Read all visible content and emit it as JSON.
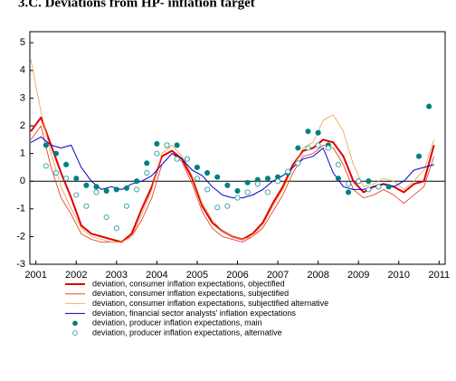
{
  "chart_data": {
    "type": "line",
    "title": "3.C. Deviations from HP- inflation target",
    "x": [
      2000.875,
      2001.125,
      2001.375,
      2001.625,
      2001.875,
      2002.125,
      2002.375,
      2002.625,
      2002.875,
      2003.125,
      2003.375,
      2003.625,
      2003.875,
      2004.125,
      2004.375,
      2004.625,
      2004.875,
      2005.125,
      2005.375,
      2005.625,
      2005.875,
      2006.125,
      2006.375,
      2006.625,
      2006.875,
      2007.125,
      2007.375,
      2007.625,
      2007.875,
      2008.125,
      2008.375,
      2008.625,
      2008.875,
      2009.125,
      2009.375,
      2009.625,
      2009.875,
      2010.125,
      2010.375,
      2010.625,
      2010.875
    ],
    "series": [
      {
        "name": "deviation, consumer inflation expectations, objectified",
        "color": "#e00000",
        "width": 2,
        "values": [
          1.8,
          2.3,
          1.3,
          0.3,
          -0.6,
          -1.6,
          -1.9,
          -2.0,
          -2.1,
          -2.2,
          -1.9,
          -1.0,
          -0.2,
          0.9,
          1.1,
          0.8,
          0.1,
          -0.9,
          -1.5,
          -1.8,
          -2.0,
          -2.1,
          -1.9,
          -1.5,
          -0.8,
          -0.2,
          0.6,
          1.1,
          1.2,
          1.5,
          1.4,
          0.9,
          0.0,
          -0.4,
          -0.2,
          -0.1,
          -0.2,
          -0.4,
          -0.1,
          0.0,
          1.3
        ]
      },
      {
        "name": "deviation, consumer inflation expectations, subjectified",
        "color": "#e03020",
        "width": 0.8,
        "values": [
          1.5,
          2.0,
          0.5,
          -0.6,
          -1.2,
          -1.9,
          -2.1,
          -2.2,
          -2.2,
          -2.2,
          -2.0,
          -1.4,
          -0.6,
          0.6,
          1.0,
          0.7,
          -0.1,
          -1.1,
          -1.7,
          -2.0,
          -2.1,
          -2.2,
          -2.0,
          -1.7,
          -1.1,
          -0.5,
          0.3,
          0.9,
          1.0,
          1.3,
          1.2,
          0.6,
          -0.3,
          -0.6,
          -0.5,
          -0.3,
          -0.5,
          -0.8,
          -0.5,
          -0.2,
          0.9
        ]
      },
      {
        "name": "deviation, consumer inflation expectations, subjectified alternative",
        "color": "#f0a040",
        "width": 0.8,
        "values": [
          4.4,
          2.5,
          1.0,
          -0.2,
          -1.0,
          -1.7,
          -2.0,
          -2.1,
          -2.2,
          -2.2,
          -2.0,
          -1.2,
          -0.3,
          1.0,
          1.3,
          0.9,
          0.2,
          -0.8,
          -1.4,
          -1.8,
          -2.0,
          -2.1,
          -2.0,
          -1.6,
          -0.9,
          -0.3,
          0.5,
          1.2,
          1.4,
          2.2,
          2.4,
          1.8,
          0.6,
          -0.2,
          -0.1,
          0.1,
          0.0,
          -0.3,
          0.0,
          0.4,
          1.5
        ]
      },
      {
        "name": "deviation, financial sector analysts' inflation expectations",
        "color": "#0000cc",
        "width": 1,
        "values": [
          1.4,
          1.6,
          1.3,
          1.2,
          1.3,
          0.5,
          0.0,
          -0.3,
          -0.2,
          -0.3,
          -0.1,
          0.0,
          0.2,
          0.6,
          1.0,
          0.8,
          0.4,
          0.2,
          -0.2,
          -0.5,
          -0.6,
          -0.6,
          -0.5,
          -0.3,
          0.0,
          0.2,
          0.5,
          0.8,
          0.9,
          1.2,
          0.3,
          -0.2,
          -0.3,
          -0.3,
          -0.2,
          -0.1,
          -0.2,
          0.0,
          0.4,
          0.5,
          0.6
        ]
      },
      {
        "name": "deviation, producer inflation expectations, main",
        "color": "#008080",
        "marker": "filled",
        "x": [
          2001.25,
          2001.5,
          2001.75,
          2002.0,
          2002.25,
          2002.5,
          2002.75,
          2003.0,
          2003.25,
          2003.5,
          2003.75,
          2004.0,
          2004.25,
          2004.5,
          2004.75,
          2005.0,
          2005.25,
          2005.5,
          2005.75,
          2006.0,
          2006.25,
          2006.5,
          2006.75,
          2007.0,
          2007.25,
          2007.5,
          2007.75,
          2008.0,
          2008.25,
          2008.5,
          2008.75,
          2009.0,
          2009.25,
          2009.5,
          2009.75,
          2010.5,
          2010.75
        ],
        "values": [
          1.3,
          1.0,
          0.6,
          0.1,
          -0.15,
          -0.2,
          -0.35,
          -0.3,
          -0.25,
          0.0,
          0.65,
          1.35,
          1.3,
          1.3,
          0.8,
          0.5,
          0.3,
          0.15,
          -0.15,
          -0.35,
          -0.05,
          0.05,
          0.1,
          0.15,
          0.3,
          1.2,
          1.8,
          1.75,
          1.3,
          0.1,
          -0.4,
          0.0,
          0.0,
          -0.2,
          -0.2,
          0.9,
          2.7
        ]
      },
      {
        "name": "deviation, producer inflation expectations, alternative",
        "color": "#2aa0a0",
        "marker": "hollow",
        "x": [
          2001.25,
          2001.5,
          2001.75,
          2002.0,
          2002.25,
          2002.5,
          2002.75,
          2003.0,
          2003.25,
          2003.5,
          2003.75,
          2004.0,
          2004.25,
          2004.5,
          2004.75,
          2005.0,
          2005.25,
          2005.5,
          2005.75,
          2006.0,
          2006.25,
          2006.5,
          2006.75,
          2007.0,
          2007.25,
          2007.5,
          2007.75,
          2008.0,
          2008.25,
          2008.5,
          2008.75,
          2009.0,
          2009.25,
          2009.5
        ],
        "values": [
          0.55,
          0.3,
          0.1,
          -0.5,
          -0.9,
          -0.4,
          -1.3,
          -1.7,
          -0.9,
          -0.3,
          0.3,
          1.0,
          1.3,
          0.8,
          0.8,
          0.1,
          -0.3,
          -0.95,
          -0.9,
          -0.6,
          -0.4,
          -0.1,
          -0.4,
          0.0,
          0.35,
          0.65,
          1.2,
          1.3,
          1.2,
          0.6,
          -0.1,
          0.0,
          -0.3,
          -0.2
        ]
      }
    ],
    "xlim": [
      2000.85,
      2011.15
    ],
    "xticks": [
      2001,
      2002,
      2003,
      2004,
      2005,
      2006,
      2007,
      2008,
      2009,
      2010,
      2011
    ],
    "ylim": [
      -3,
      5.4
    ],
    "yticks": [
      -3,
      -2,
      -1,
      0,
      1,
      2,
      3,
      4,
      5
    ],
    "zero_line": true,
    "legend": "bottom"
  }
}
